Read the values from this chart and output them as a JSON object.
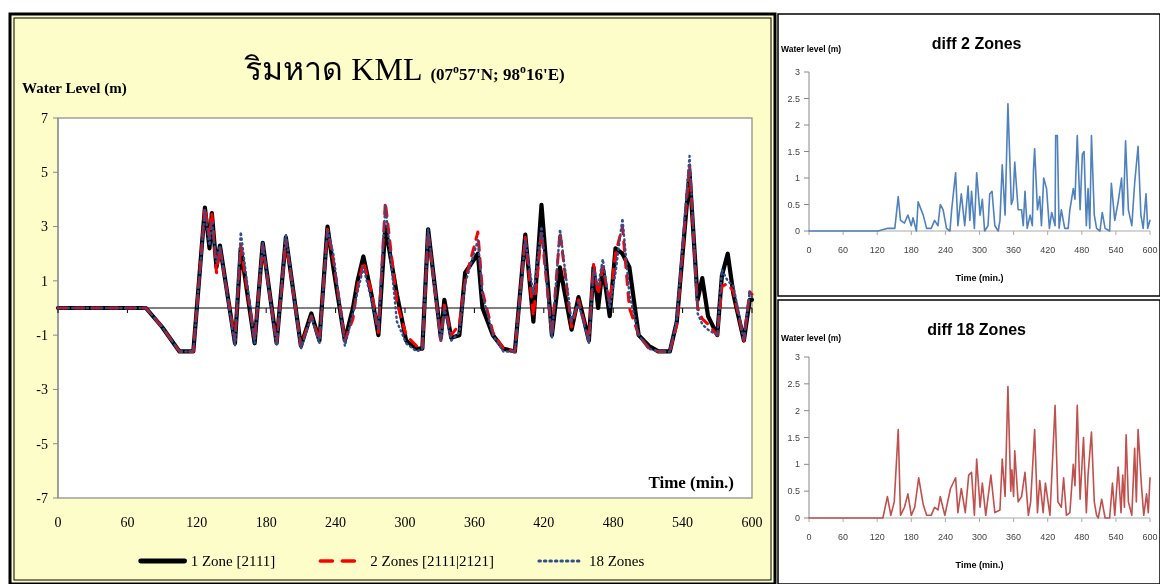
{
  "chart_data": [
    {
      "type": "line",
      "title": "ริมหาด KML",
      "subtitle": "(07$^{o}$57'N; 98$^{o}$16'E)",
      "ylabel": "Water Level (m)",
      "xlabel": "Time (min.)",
      "x": [
        0,
        60,
        76,
        90,
        105,
        117,
        127,
        131,
        133,
        137,
        140,
        153,
        158,
        170,
        177,
        189,
        197,
        210,
        219,
        226,
        233,
        238,
        248,
        255,
        259,
        264,
        271,
        277,
        283,
        293,
        301,
        310,
        315,
        320,
        331,
        334,
        340,
        347,
        352,
        363,
        367,
        376,
        385,
        395,
        404,
        411,
        418,
        427,
        434,
        444,
        450,
        459,
        463,
        467,
        471,
        477,
        482,
        488,
        494,
        502,
        511,
        519,
        529,
        535,
        546,
        553,
        557,
        562,
        570,
        574,
        579,
        584,
        593,
        598,
        600
      ],
      "series": [
        {
          "name": "1 Zone [2111]",
          "color": "#000000",
          "line_style": "solid",
          "values": [
            0,
            0,
            0,
            -0.7,
            -1.6,
            -1.6,
            3.7,
            2.2,
            3.5,
            1.5,
            2.3,
            -1.3,
            2.2,
            -1.3,
            2.4,
            -1.3,
            2.6,
            -1.4,
            -0.2,
            -1.2,
            3.0,
            1.5,
            -1.2,
            0,
            1.0,
            1.9,
            0.5,
            -1.0,
            3.0,
            0.5,
            -1.2,
            -1.5,
            -1.5,
            2.9,
            -1.1,
            0.3,
            -1.1,
            -1.0,
            1.3,
            2.0,
            0,
            -1.0,
            -1.5,
            -1.6,
            2.7,
            -0.5,
            3.8,
            -1.0,
            1.5,
            -0.8,
            0.4,
            -1.2,
            1.5,
            0,
            1.5,
            -0.3,
            2.2,
            2.0,
            1.5,
            -1.0,
            -1.4,
            -1.6,
            -1.6,
            -0.5,
            5.0,
            0.3,
            1.1,
            -0.3,
            -1.0,
            1.2,
            2.0,
            0.5,
            -1.2,
            0.3,
            0.3
          ]
        },
        {
          "name": "2 Zones [2111|2121]",
          "color": "#ff0000",
          "line_style": "dashed",
          "values": [
            0,
            0,
            0,
            -0.7,
            -1.6,
            -1.6,
            3.7,
            2.6,
            3.5,
            1.3,
            2.2,
            -1.2,
            2.3,
            -1.2,
            2.3,
            -1.3,
            2.5,
            -1.4,
            -0.3,
            -1.2,
            2.9,
            1.8,
            -1.2,
            -0.4,
            0.8,
            1.7,
            0.6,
            -0.9,
            3.9,
            0.2,
            -1.0,
            -1.4,
            -1.5,
            2.8,
            -1.2,
            0.1,
            -1.0,
            -0.6,
            1.0,
            2.8,
            0.6,
            -0.9,
            -1.5,
            -1.6,
            2.6,
            -0.3,
            2.8,
            -1.0,
            2.8,
            -0.7,
            0.3,
            -1.2,
            1.6,
            0.5,
            1.5,
            0.2,
            2.0,
            3.0,
            0.0,
            -1.0,
            -1.5,
            -1.6,
            -1.6,
            -0.6,
            5.3,
            0.0,
            -0.4,
            -0.6,
            -1.0,
            0.8,
            0.9,
            0.6,
            -1.2,
            0.6,
            0.5
          ]
        },
        {
          "name": "18 Zones",
          "color": "#2f4f8f",
          "line_style": "dotted",
          "values": [
            0,
            0,
            0,
            -0.7,
            -1.6,
            -1.6,
            3.6,
            2.3,
            3.2,
            1.7,
            2.3,
            -1.4,
            2.8,
            -1.3,
            2.4,
            -1.4,
            2.7,
            -1.5,
            -0.3,
            -1.3,
            2.9,
            2.0,
            -1.4,
            -0.2,
            0.6,
            1.5,
            0.3,
            -0.8,
            3.8,
            -0.5,
            -1.3,
            -1.6,
            -1.5,
            2.9,
            -1.2,
            0.0,
            -1.2,
            -0.9,
            0.9,
            2.5,
            0.5,
            -1.0,
            -1.6,
            -1.6,
            2.5,
            0.5,
            3.0,
            -1.1,
            2.9,
            -0.5,
            0.2,
            -1.3,
            1.4,
            0.8,
            1.8,
            0.0,
            1.3,
            3.3,
            0.5,
            -1.0,
            -1.5,
            -1.6,
            -1.6,
            -0.4,
            5.6,
            -0.2,
            -0.6,
            -0.8,
            -1.0,
            1.4,
            1.0,
            0.8,
            -1.2,
            0.6,
            0.4
          ]
        }
      ],
      "xlim": [
        0,
        600
      ],
      "ylim": [
        -7,
        7
      ],
      "xticks": [
        0,
        60,
        120,
        180,
        240,
        300,
        360,
        420,
        480,
        540,
        600
      ],
      "yticks": [
        -7,
        -5,
        -3,
        -1,
        1,
        3,
        5,
        7
      ],
      "ref_lines": [
        {
          "axis": "y",
          "value": 0,
          "color": "#000000"
        }
      ],
      "legend": "bottom",
      "marker": "none"
    },
    {
      "type": "line",
      "title": "diff 2 Zones",
      "ylabel": "Water level (m)",
      "xlabel": "Time (min.)",
      "x": [
        0,
        121.5,
        139,
        151,
        157,
        161,
        168,
        174,
        180,
        183,
        189,
        192,
        201,
        207,
        215,
        221,
        227,
        231,
        236,
        242,
        248,
        251,
        258,
        262,
        268,
        274,
        280,
        283,
        286,
        291,
        295,
        301,
        305,
        309,
        315,
        318,
        322,
        327,
        333,
        336,
        340,
        345,
        350,
        356,
        359,
        362,
        368,
        374,
        377,
        380,
        384,
        389,
        393,
        395,
        397,
        402,
        406,
        409,
        413,
        418,
        423,
        427,
        433,
        434,
        437,
        440,
        444,
        450,
        456,
        459,
        465,
        468,
        472,
        477,
        481,
        484,
        488,
        491,
        494,
        497,
        502,
        506,
        512,
        516,
        521,
        529,
        532,
        538,
        544,
        550,
        553,
        557,
        562,
        568,
        573,
        579,
        584,
        588,
        593,
        596,
        600
      ],
      "series": [
        {
          "color": "#4f81bd",
          "values": [
            0,
            0,
            0.05,
            0.05,
            0.65,
            0.2,
            0.15,
            0.3,
            0.1,
            0.25,
            0.0,
            0.55,
            0.3,
            0.05,
            0.05,
            0.2,
            0.1,
            0.5,
            0.4,
            0.05,
            0.0,
            0.4,
            1.1,
            0.1,
            0.7,
            0.1,
            0.85,
            0.2,
            0.75,
            0.05,
            1.1,
            0.3,
            0.6,
            0.0,
            0.1,
            0.7,
            0.75,
            0.1,
            0.0,
            0.2,
            1.25,
            0.3,
            2.4,
            0.5,
            0.6,
            1.3,
            0.4,
            0.4,
            0.1,
            0.75,
            0.05,
            0.3,
            0.1,
            1.15,
            1.55,
            0.4,
            0.65,
            0.1,
            1.0,
            0.8,
            0.05,
            0.35,
            0.1,
            1.8,
            1.8,
            0.05,
            0.4,
            0.05,
            0.05,
            0.4,
            0.8,
            0.6,
            1.8,
            0.4,
            1.45,
            1.5,
            0.1,
            0.8,
            0.05,
            1.8,
            0.3,
            0.05,
            0.0,
            0.35,
            0.05,
            0.0,
            0.9,
            0.2,
            0.55,
            1.0,
            0.3,
            1.7,
            0.4,
            0.1,
            0.9,
            1.6,
            0.3,
            0.05,
            0.7,
            0.05,
            0.2
          ]
        }
      ],
      "xlim": [
        0,
        600
      ],
      "ylim": [
        0,
        3
      ],
      "xticks": [
        0,
        60,
        120,
        180,
        240,
        300,
        360,
        420,
        480,
        540,
        600
      ],
      "yticks": [
        0,
        0.5,
        1,
        1.5,
        2,
        2.5,
        3
      ],
      "marker": "none"
    },
    {
      "type": "line",
      "title": "diff 18 Zones",
      "ylabel": "Water level (m)",
      "xlabel": "Time (min.)",
      "x": [
        0,
        130,
        138,
        144,
        150,
        157,
        161,
        168,
        174,
        180,
        186,
        193,
        201,
        207,
        215,
        221,
        227,
        231,
        239,
        249,
        258,
        262,
        268,
        275,
        281,
        286,
        291,
        295,
        301,
        305,
        311,
        320,
        327,
        336,
        340,
        345,
        350,
        355,
        357,
        360,
        362,
        368,
        374,
        380,
        386,
        390,
        397,
        402,
        406,
        412,
        416,
        424,
        433,
        438,
        444,
        448,
        453,
        459,
        465,
        468,
        472,
        477,
        483,
        488,
        491,
        497,
        502,
        506,
        509,
        515,
        521,
        529,
        534,
        538,
        544,
        549,
        552,
        555,
        558,
        562,
        568,
        573,
        576,
        579,
        585,
        589,
        594,
        597,
        600
      ],
      "series": [
        {
          "color": "#c0504d",
          "values": [
            0,
            0,
            0.4,
            0.05,
            0.3,
            1.65,
            0.05,
            0.2,
            0.45,
            0.05,
            0.2,
            0.75,
            0.25,
            0.05,
            0.05,
            0.2,
            0.15,
            0.4,
            0.05,
            0.55,
            0.75,
            0.1,
            0.55,
            0.1,
            0.8,
            0.85,
            0.05,
            1.1,
            0.2,
            0.65,
            0.05,
            0.8,
            0.1,
            0.15,
            1.1,
            0.4,
            2.45,
            0.5,
            0.9,
            0.4,
            1.25,
            0.3,
            0.4,
            0.85,
            0.05,
            0.3,
            1.65,
            0.1,
            0.7,
            0.1,
            0.65,
            0.05,
            2.1,
            0.3,
            0.2,
            0.75,
            0.05,
            0.1,
            1.0,
            0.6,
            2.1,
            0.35,
            1.5,
            0.1,
            0.8,
            1.6,
            0.3,
            0.05,
            0.0,
            0.35,
            0.0,
            0.0,
            0.65,
            0.05,
            0.95,
            0.1,
            0.8,
            0.2,
            1.55,
            0.3,
            0.05,
            1.3,
            0.3,
            1.65,
            0.6,
            0.05,
            0.45,
            0.1,
            0.75
          ]
        }
      ],
      "xlim": [
        0,
        600
      ],
      "ylim": [
        0,
        3
      ],
      "xticks": [
        0,
        60,
        120,
        180,
        240,
        300,
        360,
        420,
        480,
        540,
        600
      ],
      "yticks": [
        0,
        0.5,
        1,
        1.5,
        2,
        2.5,
        3
      ],
      "marker": "none"
    }
  ]
}
